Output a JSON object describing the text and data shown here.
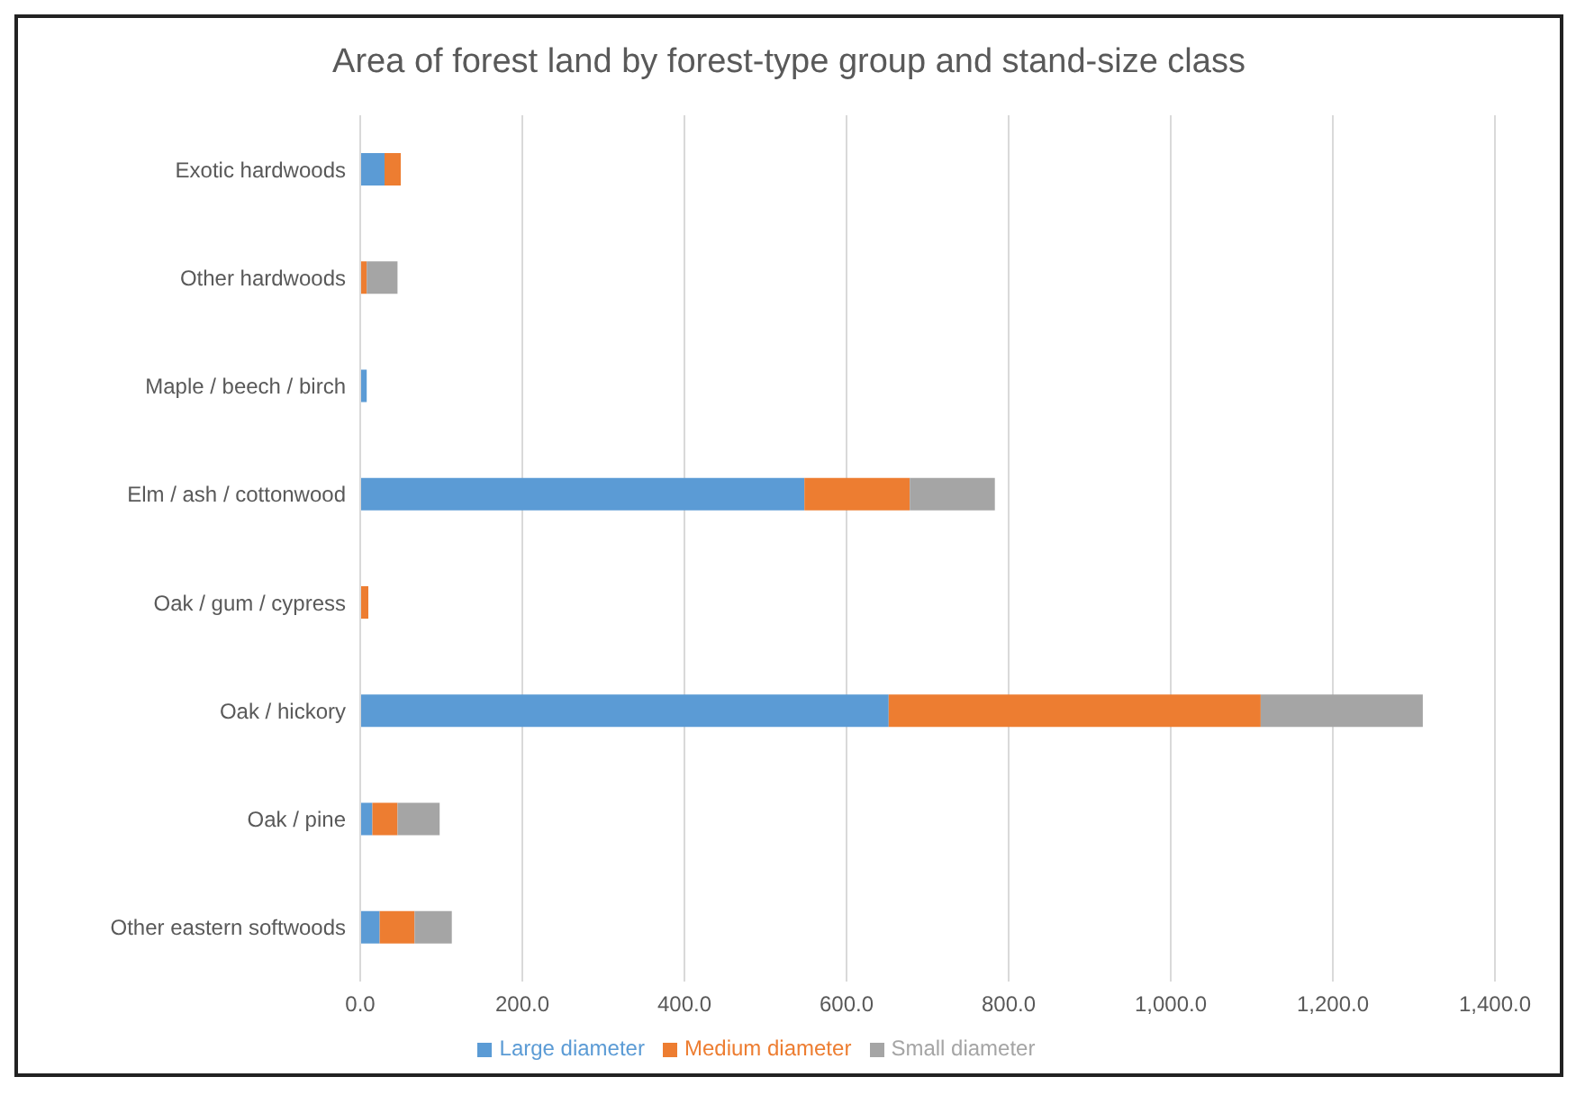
{
  "chart_data": {
    "type": "bar",
    "orientation": "horizontal",
    "stacked": true,
    "title": "Area of forest land by forest-type group and stand-size class",
    "categories": [
      "Exotic hardwoods",
      "Other hardwoods",
      "Maple / beech / birch",
      "Elm / ash / cottonwood",
      "Oak / gum / cypress",
      "Oak / hickory",
      "Oak / pine",
      "Other eastern softwoods"
    ],
    "series": [
      {
        "name": "Large diameter",
        "color": "#5b9bd5",
        "values": [
          30,
          0,
          8,
          548,
          0,
          652,
          15,
          24
        ]
      },
      {
        "name": "Medium diameter",
        "color": "#ed7d31",
        "values": [
          20,
          8,
          0,
          130,
          10,
          459,
          31,
          43
        ]
      },
      {
        "name": "Small diameter",
        "color": "#a5a5a5",
        "values": [
          0,
          38,
          0,
          105,
          0,
          200,
          52,
          46
        ]
      }
    ],
    "xlim": [
      0,
      1400
    ],
    "xticks": [
      {
        "value": 0,
        "label": "0.0"
      },
      {
        "value": 200,
        "label": "200.0"
      },
      {
        "value": 400,
        "label": "400.0"
      },
      {
        "value": 600,
        "label": "600.0"
      },
      {
        "value": 800,
        "label": "800.0"
      },
      {
        "value": 1000,
        "label": "1,000.0"
      },
      {
        "value": 1200,
        "label": "1,200.0"
      },
      {
        "value": 1400,
        "label": "1,400.0"
      }
    ],
    "grid": "x",
    "legend": "bottom"
  }
}
